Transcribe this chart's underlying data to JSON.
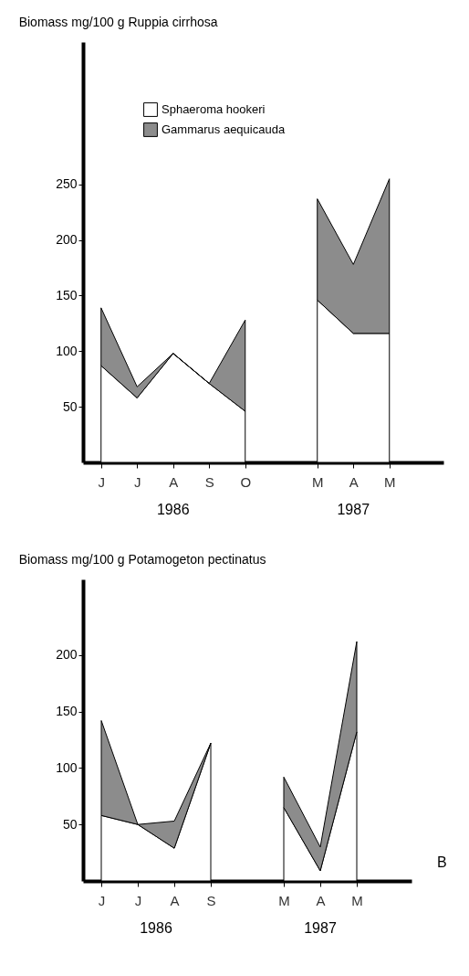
{
  "chart_data": [
    {
      "type": "area",
      "title": "Biomass mg/100 g Ruppia cirrhosa",
      "categories": [
        "J",
        "J",
        "A",
        "S",
        "O",
        null,
        "M",
        "A",
        "M"
      ],
      "stacked": true,
      "ylim": [
        0,
        378
      ],
      "yticks": [
        50,
        100,
        150,
        200,
        250
      ],
      "legend": "top left",
      "grid": false,
      "series": [
        {
          "name": "Sphaeroma hookeri",
          "color": "#ffffff",
          "values": [
            87,
            58,
            98,
            71,
            46,
            null,
            146,
            116,
            116
          ]
        },
        {
          "name": "Gammarus aequicauda",
          "color": "#8c8c8c",
          "values": [
            52,
            10,
            0,
            0,
            82,
            null,
            91,
            62,
            139
          ]
        }
      ],
      "annotations": [
        "1986",
        "1987"
      ]
    },
    {
      "type": "area",
      "title": "Biomass mg/100 g Potamogeton pectinatus",
      "categories": [
        "J",
        "J",
        "A",
        "S",
        null,
        "M",
        "A",
        "M"
      ],
      "stacked": true,
      "ylim": [
        0,
        267
      ],
      "yticks": [
        50,
        100,
        150,
        200
      ],
      "grid": false,
      "series": [
        {
          "color": "#ffffff",
          "values": [
            58,
            50,
            29,
            122,
            null,
            65,
            9,
            132
          ]
        },
        {
          "color": "#8c8c8c",
          "values": [
            84,
            0,
            24,
            0,
            null,
            27,
            21,
            80
          ]
        }
      ],
      "annotations": [
        "1986",
        "1987",
        "B"
      ]
    }
  ]
}
